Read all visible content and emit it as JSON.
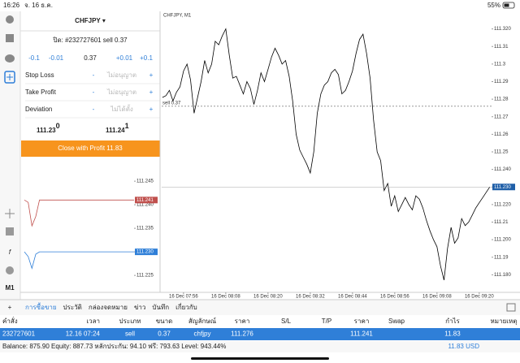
{
  "status_bar": {
    "time": "16:26",
    "date": "จ. 16 ธ.ค.",
    "battery": "55%"
  },
  "sidebar": {
    "timeframe": "M1"
  },
  "order_panel": {
    "symbol": "CHFJPY ▾",
    "close_order": "ปิด: #232727601 sell 0.37",
    "steps": [
      "-0.1",
      "-0.01",
      "0.37",
      "+0.01",
      "+0.1"
    ],
    "fields": [
      {
        "label": "Stop Loss",
        "value": "ไม่อนุญาต"
      },
      {
        "label": "Take Profit",
        "value": "ไม่อนุญาต"
      },
      {
        "label": "Deviation",
        "value": "ไม่ได้ตั้ง"
      }
    ],
    "bid": {
      "big": "111.23",
      "small": "0"
    },
    "ask": {
      "big": "111.24",
      "small": "1"
    },
    "button": "Close with Profit 11.83"
  },
  "chart_data": [
    {
      "type": "line",
      "title": "CHFJPY, M1",
      "x": [
        470,
        471,
        472,
        473,
        474,
        475,
        476,
        477,
        478,
        479,
        480,
        481,
        482,
        483,
        484,
        485,
        486,
        487,
        488,
        489,
        490,
        491,
        492,
        493,
        494,
        495,
        496,
        497,
        498,
        499,
        500,
        501,
        502,
        503,
        504,
        505,
        506,
        507,
        508,
        509,
        510,
        511,
        512,
        513,
        514,
        515,
        516,
        517,
        518,
        519,
        520,
        521,
        522,
        523,
        524,
        525,
        526,
        527,
        528,
        529,
        530,
        531,
        532,
        533,
        534,
        535,
        536,
        537,
        538,
        539,
        540,
        541,
        542,
        543,
        544,
        545,
        546,
        547,
        548,
        549,
        550,
        551,
        552,
        553,
        554,
        555,
        556,
        557,
        558,
        559,
        560,
        561,
        562,
        563
      ],
      "xlim": [
        469.8,
        563.5
      ],
      "xticks": [
        {
          "value": 476,
          "label": "16 Dec 07:56"
        },
        {
          "value": 488,
          "label": "16 Dec 08:08"
        },
        {
          "value": 500,
          "label": "16 Dec 08:20"
        },
        {
          "value": 512,
          "label": "16 Dec 08:32"
        },
        {
          "value": 524,
          "label": "16 Dec 08:44"
        },
        {
          "value": 536,
          "label": "16 Dec 08:56"
        },
        {
          "value": 548,
          "label": "16 Dec 09:08"
        },
        {
          "value": 560,
          "label": "16 Dec 09:20"
        }
      ],
      "ylim": [
        111.17,
        111.33
      ],
      "yticks": [
        {
          "value": 111.32,
          "label": "111.320"
        },
        111.31,
        111.3,
        111.29,
        111.28,
        111.27,
        111.26,
        111.25,
        {
          "value": 111.24,
          "label": "111.240"
        },
        {
          "value": 111.23,
          "label": "111.230"
        },
        {
          "value": 111.22,
          "label": "111.220"
        },
        111.21,
        {
          "value": 111.2,
          "label": "111.200"
        },
        111.19,
        {
          "value": 111.18,
          "label": "111.180"
        }
      ],
      "series": [
        {
          "color": "#000000",
          "tag_label": "111.230",
          "values": [
            111.281,
            111.282,
            111.285,
            111.279,
            111.284,
            111.287,
            111.296,
            111.3,
            111.291,
            111.272,
            111.281,
            111.29,
            111.302,
            111.295,
            111.3,
            111.313,
            111.311,
            111.316,
            111.32,
            111.305,
            111.292,
            111.293,
            111.288,
            111.283,
            111.29,
            111.286,
            111.277,
            111.285,
            111.295,
            111.29,
            111.297,
            111.304,
            111.309,
            111.305,
            111.3,
            111.302,
            111.293,
            111.279,
            111.26,
            111.251,
            111.247,
            111.243,
            111.238,
            111.25,
            111.272,
            111.283,
            111.288,
            111.29,
            111.295,
            111.297,
            111.294,
            111.283,
            111.285,
            111.29,
            111.296,
            111.306,
            111.314,
            111.317,
            111.306,
            111.292,
            111.268,
            111.25,
            111.245,
            111.228,
            111.232,
            111.219,
            111.225,
            111.216,
            111.22,
            111.224,
            111.22,
            111.217,
            111.225,
            111.223,
            111.218,
            111.211,
            111.205,
            111.2,
            111.196,
            111.185,
            111.177,
            111.195,
            111.207,
            111.198,
            111.201,
            111.212,
            111.208,
            111.21,
            111.214,
            111.218,
            111.221,
            111.224,
            111.227,
            111.23
          ]
        }
      ],
      "order": {
        "label": "sell 0.37",
        "price": 111.276
      }
    },
    {
      "type": "line",
      "ylim": [
        111.2214,
        111.2464
      ],
      "yticks": [
        111.245,
        {
          "value": 111.24,
          "label": "111.240"
        },
        111.235,
        {
          "value": 111.23,
          "label": "111.230"
        },
        111.225
      ],
      "series": [
        {
          "color": "#c0504d",
          "values": [
            111.241,
            111.2405,
            111.2355,
            111.2375,
            111.241,
            111.241,
            111.241,
            111.241,
            111.241,
            111.241,
            111.241,
            111.241,
            111.241,
            111.241,
            111.241,
            111.241,
            111.241,
            111.241,
            111.241,
            111.241,
            111.241,
            111.241,
            111.241,
            111.241,
            111.241,
            111.241,
            111.241,
            111.241,
            111.241,
            111.241
          ]
        },
        {
          "color": "#2f7fd8",
          "tag_label": "111.230",
          "values": [
            111.23,
            111.229,
            111.2265,
            111.2295,
            111.23,
            111.23,
            111.23,
            111.23,
            111.23,
            111.23,
            111.23,
            111.23,
            111.23,
            111.23,
            111.23,
            111.23,
            111.23,
            111.23,
            111.23,
            111.23,
            111.23,
            111.23,
            111.23,
            111.23,
            111.23,
            111.23,
            111.23,
            111.23,
            111.23,
            111.23
          ]
        }
      ]
    }
  ],
  "tabs": [
    "การซื้อขาย",
    "ประวัติ",
    "กล่องจดหมาย",
    "ข่าว",
    "บันทึก",
    "เกี่ยวกับ"
  ],
  "table": {
    "header": [
      "คำสั่ง",
      "เวลา",
      "ประเภท",
      "ขนาด",
      "สัญลักษณ์",
      "ราคา",
      "S/L",
      "T/P",
      "ราคา",
      "Swap",
      "กำไร",
      "หมายเหตุ"
    ],
    "rows": [
      [
        "232727601",
        "12.16 07:24",
        "sell",
        "0.37",
        "chfjpy",
        "111.276",
        null,
        null,
        "111.241",
        null,
        "11.83",
        null
      ]
    ]
  },
  "footer": {
    "summary": "Balance: 875.90 Equity: 887.73 หลักประกัน: 94.10 ฟรี: 793.63 Level: 943.44%",
    "profit": "11.83 USD"
  }
}
